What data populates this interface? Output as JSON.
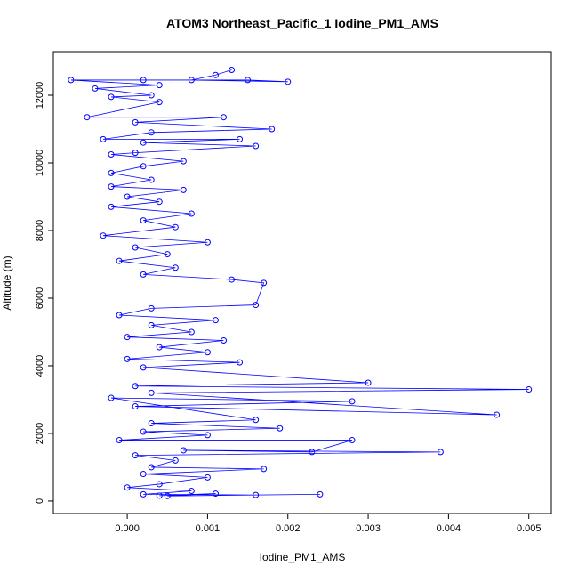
{
  "chart_data": {
    "type": "line",
    "title": "ATOM3 Northeast_Pacific_1 Iodine_PM1_AMS",
    "x_label": "Iodine_PM1_AMS",
    "y_label": "Altitude (m)",
    "color": "#0000ff",
    "markers": true,
    "xlim": [
      -0.00092,
      0.00528
    ],
    "ylim": [
      -370,
      13290
    ],
    "xticks": [
      {
        "value": 0,
        "label": "0.000"
      },
      {
        "value": 0.001,
        "label": "0.001"
      },
      {
        "value": 0.002,
        "label": "0.002"
      },
      {
        "value": 0.003,
        "label": "0.003"
      },
      {
        "value": 0.004,
        "label": "0.004"
      },
      {
        "value": 0.005,
        "label": "0.005"
      }
    ],
    "yticks": [
      0,
      2000,
      4000,
      6000,
      8000,
      10000,
      12000
    ],
    "x": [
      0.0013,
      0.0011,
      0.0008,
      0.002,
      0.0015,
      0.0002,
      -0.0007,
      0.0004,
      -0.0004,
      0.0003,
      -0.0002,
      0.0004,
      -0.0005,
      0.0012,
      0.0001,
      0.0018,
      0.0003,
      -0.0003,
      0.0014,
      0.0002,
      0.0016,
      0.0001,
      -0.0002,
      0.0007,
      0.0002,
      -0.0002,
      0.0003,
      -0.0002,
      0.0007,
      0.0,
      0.0004,
      -0.0002,
      0.0008,
      0.0002,
      0.0006,
      -0.0003,
      0.001,
      0.0001,
      0.0005,
      -0.0001,
      0.0006,
      0.0002,
      0.0013,
      0.0017,
      0.0016,
      0.0003,
      -0.0001,
      0.0011,
      0.0003,
      0.0008,
      0.0,
      0.0012,
      0.0004,
      0.001,
      0.0,
      0.0014,
      0.0002,
      0.003,
      0.0001,
      0.005,
      0.0003,
      0.0046,
      0.0001,
      0.0028,
      -0.0002,
      0.0016,
      0.0003,
      0.0019,
      0.0002,
      0.001,
      -0.0001,
      0.0028,
      0.0023,
      0.0007,
      0.0039,
      0.0001,
      0.0006,
      0.0003,
      0.0017,
      0.0002,
      0.001,
      0.0004,
      0.0,
      0.0008,
      0.0002,
      0.0016,
      0.0024,
      0.0005,
      0.0011,
      0.0004
    ],
    "values": [
      12750,
      12600,
      12450,
      12400,
      12450,
      12450,
      12450,
      12300,
      12200,
      12000,
      11950,
      11800,
      11350,
      11350,
      11200,
      11000,
      10900,
      10700,
      10700,
      10600,
      10500,
      10300,
      10250,
      10050,
      9900,
      9700,
      9500,
      9300,
      9200,
      9000,
      8850,
      8700,
      8500,
      8300,
      8100,
      7850,
      7650,
      7500,
      7300,
      7100,
      6900,
      6700,
      6550,
      6450,
      5800,
      5700,
      5500,
      5350,
      5200,
      5000,
      4850,
      4750,
      4550,
      4400,
      4200,
      4100,
      3950,
      3500,
      3400,
      3300,
      3200,
      2550,
      2800,
      2950,
      3050,
      2400,
      2300,
      2150,
      2050,
      1950,
      1800,
      1800,
      1450,
      1500,
      1450,
      1350,
      1200,
      1000,
      950,
      800,
      700,
      500,
      400,
      300,
      200,
      180,
      200,
      150,
      220,
      160
    ]
  }
}
